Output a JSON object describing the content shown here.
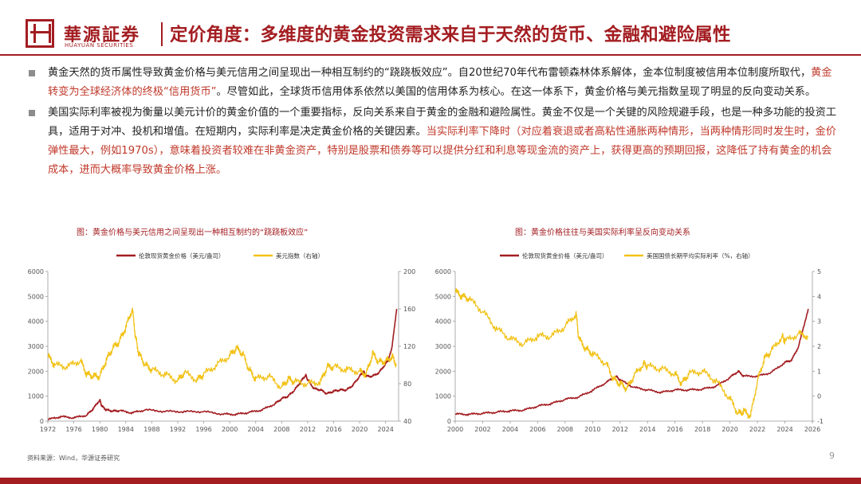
{
  "header": {
    "brand_cn": "華源証券",
    "brand_en": "HUAYUAN SECURITIES",
    "title": "定价角度：多维度的黄金投资需求来自于天然的货币、金融和避险属性"
  },
  "bullets": [
    {
      "segments": [
        {
          "text": "黄金天然的货币属性导致黄金价格与美元信用之间呈现出一种相互制约的“跷跷板效应”。自20世纪70年代布雷顿森林体系解体，金本位制度被信用本位制度所取代，",
          "red": false
        },
        {
          "text": "黄金转变为全球经济体的终极“信用货币”",
          "red": true
        },
        {
          "text": "。尽管如此，全球货币信用体系依然以美国的信用体系为核心。在这一体系下，黄金价格与美元指数呈现了明显的反向变动关系。",
          "red": false
        }
      ]
    },
    {
      "segments": [
        {
          "text": "美国实际利率被视为衡量以美元计价的黄金价值的一个重要指标，反向关系来自于黄金的金融和避险属性。黄金不仅是一个关键的风险规避手段，也是一种多功能的投资工具，适用于对冲、投机和增值。在短期内，实际利率是决定黄金价格的关键因素。",
          "red": false
        },
        {
          "text": "当实际利率下降时（对应着衰退或者高粘性通胀两种情形，当两种情形同时发生时，金价弹性最大，例如1970s），意味着投资者较难在非黄金资产，特别是股票和债券等可以提供分红和利息等现金流的资产上，获得更高的预期回报，这降低了持有黄金的机会成本，进而大概率导致黄金价格上涨。",
          "red": true
        }
      ]
    }
  ],
  "chart_data": [
    {
      "type": "line",
      "title": "图：黄金价格与美元信用之间呈现出一种相互制约的“跷跷板效应”",
      "x_ticks": [
        "1972",
        "1976",
        "1980",
        "1984",
        "1988",
        "1992",
        "1996",
        "2000",
        "2004",
        "2008",
        "2012",
        "2016",
        "2020",
        "2024"
      ],
      "xlim": [
        1972,
        2026
      ],
      "ylim_left": [
        0,
        6000
      ],
      "yticks_left": [
        "0",
        "1000",
        "2000",
        "3000",
        "4000",
        "5000",
        "6000"
      ],
      "ylim_right": [
        40,
        200
      ],
      "yticks_right": [
        "40",
        "80",
        "120",
        "160",
        "200"
      ],
      "series": [
        {
          "name": "伦敦现货黄金价格（美元/盎司）",
          "axis": "left",
          "color": "#a31d21",
          "x": [
            1972,
            1974,
            1976,
            1978,
            1979,
            1980,
            1980.3,
            1981,
            1982,
            1983,
            1985,
            1987,
            1990,
            1993,
            1996,
            1999,
            2001,
            2003,
            2005,
            2007,
            2008,
            2009,
            2010,
            2011,
            2011.7,
            2012,
            2013,
            2014,
            2015,
            2016,
            2017,
            2018,
            2019,
            2020,
            2020.6,
            2021,
            2022,
            2023,
            2024,
            2024.5,
            2025,
            2025.7
          ],
          "y": [
            60,
            180,
            130,
            240,
            500,
            850,
            600,
            450,
            400,
            420,
            330,
            450,
            390,
            380,
            380,
            280,
            270,
            350,
            450,
            700,
            900,
            1000,
            1250,
            1600,
            1850,
            1650,
            1300,
            1250,
            1100,
            1200,
            1250,
            1250,
            1450,
            1800,
            2000,
            1800,
            1800,
            1950,
            2300,
            2500,
            3000,
            4500
          ]
        },
        {
          "name": "美元指数（右轴）",
          "axis": "right",
          "color": "#f2c218",
          "x": [
            1972,
            1973,
            1975,
            1977,
            1978,
            1979,
            1980,
            1981,
            1982,
            1983,
            1984,
            1985,
            1985.5,
            1986,
            1987,
            1988,
            1990,
            1992,
            1993,
            1995,
            1996,
            1998,
            2000,
            2001,
            2002,
            2003,
            2004,
            2006,
            2008,
            2009,
            2010,
            2012,
            2014,
            2015,
            2016,
            2018,
            2020,
            2021,
            2022,
            2023,
            2024,
            2025,
            2025.7
          ],
          "y": [
            110,
            100,
            98,
            105,
            90,
            88,
            88,
            105,
            118,
            125,
            140,
            160,
            130,
            112,
            100,
            95,
            90,
            83,
            92,
            84,
            90,
            100,
            110,
            118,
            112,
            95,
            85,
            88,
            76,
            85,
            82,
            80,
            82,
            98,
            98,
            95,
            93,
            90,
            112,
            103,
            104,
            109,
            100
          ]
        }
      ]
    },
    {
      "type": "line",
      "title": "图：黄金价格往往与美国实际利率呈反向变动关系",
      "x_ticks": [
        "2000",
        "2002",
        "2004",
        "2006",
        "2008",
        "2010",
        "2012",
        "2014",
        "2016",
        "2018",
        "2020",
        "2022",
        "2024",
        "2026"
      ],
      "xlim": [
        2000,
        2026
      ],
      "ylim_left": [
        0,
        6000
      ],
      "yticks_left": [
        "0",
        "1000",
        "2000",
        "3000",
        "4000",
        "5000",
        "6000"
      ],
      "ylim_right": [
        -1,
        5
      ],
      "yticks_right": [
        "-1",
        "0",
        "1",
        "2",
        "3",
        "4",
        "5"
      ],
      "series": [
        {
          "name": "伦敦现货黄金价格（美元/盎司）",
          "axis": "left",
          "color": "#a31d21",
          "x": [
            2000,
            2001,
            2002,
            2003,
            2004,
            2005,
            2006,
            2007,
            2008,
            2009,
            2010,
            2011,
            2011.7,
            2012,
            2013,
            2014,
            2015,
            2016,
            2017,
            2018,
            2019,
            2020,
            2020.6,
            2021,
            2022,
            2023,
            2024,
            2024.5,
            2025,
            2025.7
          ],
          "y": [
            280,
            270,
            310,
            360,
            410,
            440,
            600,
            700,
            870,
            970,
            1230,
            1550,
            1800,
            1650,
            1350,
            1250,
            1150,
            1250,
            1250,
            1280,
            1400,
            1750,
            2000,
            1800,
            1800,
            1950,
            2350,
            2450,
            3000,
            4500
          ]
        },
        {
          "name": "美国国债长期平均实际利率（%，右轴）",
          "axis": "right",
          "color": "#f2c218",
          "x": [
            2000,
            2000.5,
            2001,
            2002,
            2003,
            2004,
            2005,
            2006,
            2007,
            2008,
            2008.8,
            2009,
            2009.5,
            2010,
            2011,
            2011.5,
            2012,
            2012.5,
            2013,
            2013.7,
            2014,
            2015,
            2016,
            2016.5,
            2017,
            2018,
            2019,
            2020,
            2020.6,
            2021,
            2021.5,
            2022,
            2022.5,
            2023,
            2023.8,
            2024,
            2025,
            2025.7
          ],
          "y": [
            4.2,
            4.0,
            3.9,
            3.4,
            2.7,
            2.3,
            2.1,
            2.4,
            2.4,
            2.8,
            3.3,
            2.3,
            1.9,
            1.7,
            1.3,
            0.7,
            0.5,
            0.3,
            0.8,
            1.3,
            1.2,
            1.1,
            0.9,
            0.5,
            0.9,
            1.0,
            0.6,
            -0.1,
            -0.7,
            -0.6,
            -0.8,
            0.6,
            1.5,
            1.8,
            2.4,
            2.2,
            2.5,
            2.4
          ]
        }
      ]
    }
  ],
  "footer": {
    "source": "资料来源：Wind，华源证券研究",
    "page": "9"
  }
}
